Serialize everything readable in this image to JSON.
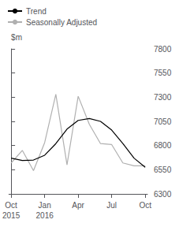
{
  "chart_data": {
    "type": "line",
    "y_label": "$m",
    "x": [
      0,
      1,
      2,
      3,
      4,
      5,
      6,
      7,
      8,
      9,
      10,
      11,
      12
    ],
    "series": [
      {
        "name": "Trend",
        "color": "#000000",
        "values": [
          6670,
          6645,
          6650,
          6700,
          6820,
          6970,
          7060,
          7080,
          7050,
          6960,
          6820,
          6670,
          6575
        ]
      },
      {
        "name": "Seasonally Adjusted",
        "color": "#b0b0b0",
        "values": [
          6620,
          6750,
          6540,
          6830,
          7330,
          6600,
          7310,
          7020,
          6820,
          6810,
          6620,
          6590,
          6590
        ]
      }
    ],
    "xlim": [
      -0.2,
      12.2
    ],
    "xticks": [
      {
        "value": 0,
        "label": "Oct"
      },
      {
        "value": 3,
        "label": "Jan"
      },
      {
        "value": 6,
        "label": "Apr"
      },
      {
        "value": 9,
        "label": "Jul"
      },
      {
        "value": 12,
        "label": "Oct"
      }
    ],
    "ylim": [
      6300,
      7800
    ],
    "yticks": [
      6300,
      6550,
      6800,
      7050,
      7300,
      7550,
      7800
    ],
    "annotations": [
      {
        "text": "2015",
        "x": 0
      },
      {
        "text": "2016",
        "x": 3
      }
    ],
    "legend": "upper left",
    "grid": false
  }
}
